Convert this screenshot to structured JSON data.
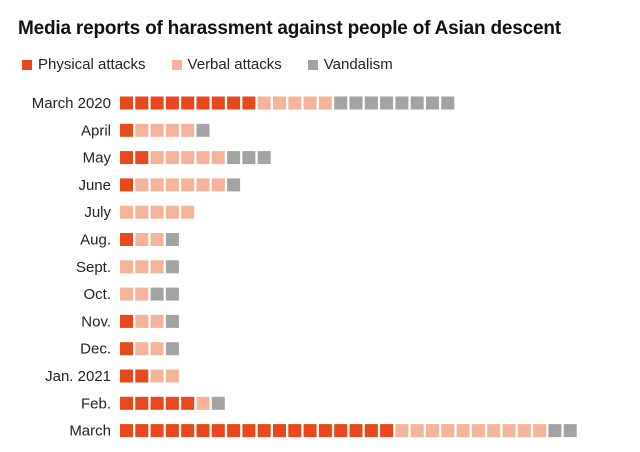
{
  "title": "Media reports of harassment against people of Asian descent",
  "colors": {
    "physical": "#e8481c",
    "verbal": "#f5b49a",
    "vandalism": "#a3a3a3"
  },
  "legend": [
    {
      "key": "physical",
      "label": "Physical attacks"
    },
    {
      "key": "verbal",
      "label": "Verbal attacks"
    },
    {
      "key": "vandalism",
      "label": "Vandalism"
    }
  ],
  "chart_data": {
    "type": "bar",
    "stacked": true,
    "orientation": "horizontal",
    "unit_marks": true,
    "categories": [
      "March 2020",
      "April",
      "May",
      "June",
      "July",
      "Aug.",
      "Sept.",
      "Oct.",
      "Nov.",
      "Dec.",
      "Jan. 2021",
      "Feb.",
      "March"
    ],
    "series": [
      {
        "name": "Physical attacks",
        "key": "physical",
        "values": [
          9,
          1,
          2,
          1,
          0,
          1,
          0,
          0,
          1,
          1,
          2,
          5,
          18
        ]
      },
      {
        "name": "Verbal attacks",
        "key": "verbal",
        "values": [
          5,
          4,
          5,
          6,
          5,
          2,
          3,
          2,
          2,
          2,
          2,
          1,
          10
        ]
      },
      {
        "name": "Vandalism",
        "key": "vandalism",
        "values": [
          8,
          1,
          3,
          1,
          0,
          1,
          1,
          2,
          1,
          1,
          0,
          1,
          2
        ]
      }
    ],
    "legend_position": "top-left",
    "grid": false
  }
}
